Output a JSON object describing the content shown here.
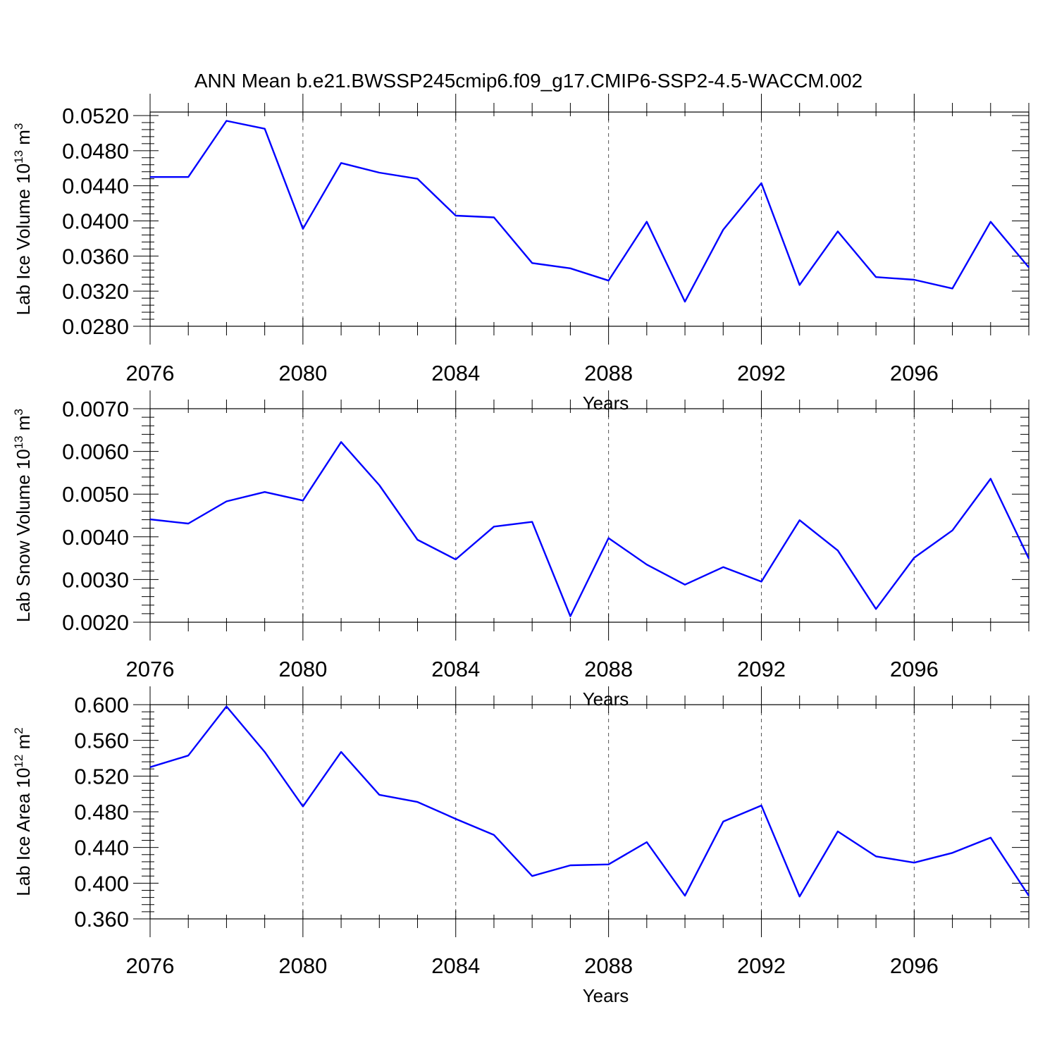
{
  "figure_title": "ANN Mean b.e21.BWSSP245cmip6.f09_g17.CMIP6-SSP2-4.5-WACCM.002",
  "colors": {
    "series": "#0000ff",
    "grid": "#555555",
    "axes": "#000000"
  },
  "chart_data": [
    {
      "type": "line",
      "ylabel": "Lab Ice Volume 10",
      "ylabel_power": "13",
      "ylabel_unit": " m",
      "ylabel_unit_power": "3",
      "xlabel": "Years",
      "xlim": [
        2076,
        2099
      ],
      "ylim": [
        0.028,
        0.0524
      ],
      "xticks": [
        2076,
        2080,
        2084,
        2088,
        2092,
        2096
      ],
      "yticks": [
        0.028,
        0.032,
        0.036,
        0.04,
        0.044,
        0.048,
        0.052
      ],
      "ytick_labels": [
        "0.0280",
        "0.0320",
        "0.0360",
        "0.0400",
        "0.0440",
        "0.0480",
        "0.0520"
      ],
      "grid": "x dashed at major ticks",
      "x": [
        2076,
        2077,
        2078,
        2079,
        2080,
        2081,
        2082,
        2083,
        2084,
        2085,
        2086,
        2087,
        2088,
        2089,
        2090,
        2091,
        2092,
        2093,
        2094,
        2095,
        2096,
        2097,
        2098,
        2099
      ],
      "y": [
        0.045,
        0.045,
        0.0514,
        0.0505,
        0.0391,
        0.0466,
        0.0455,
        0.0448,
        0.0406,
        0.0404,
        0.0352,
        0.0346,
        0.0332,
        0.0399,
        0.0308,
        0.039,
        0.0443,
        0.0327,
        0.0388,
        0.0336,
        0.0333,
        0.0323,
        0.0399,
        0.0347
      ]
    },
    {
      "type": "line",
      "ylabel": "Lab Snow Volume 10",
      "ylabel_power": "13",
      "ylabel_unit": " m",
      "ylabel_unit_power": "3",
      "xlabel": "Years",
      "xlim": [
        2076,
        2099
      ],
      "ylim": [
        0.002,
        0.007
      ],
      "xticks": [
        2076,
        2080,
        2084,
        2088,
        2092,
        2096
      ],
      "yticks": [
        0.002,
        0.003,
        0.004,
        0.005,
        0.006,
        0.007
      ],
      "ytick_labels": [
        "0.0020",
        "0.0030",
        "0.0040",
        "0.0050",
        "0.0060",
        "0.0070"
      ],
      "grid": "x dashed at major ticks",
      "x": [
        2076,
        2077,
        2078,
        2079,
        2080,
        2081,
        2082,
        2083,
        2084,
        2085,
        2086,
        2087,
        2088,
        2089,
        2090,
        2091,
        2092,
        2093,
        2094,
        2095,
        2096,
        2097,
        2098,
        2099
      ],
      "y": [
        0.00441,
        0.00431,
        0.00483,
        0.00505,
        0.00485,
        0.00622,
        0.00521,
        0.00393,
        0.00347,
        0.00424,
        0.00435,
        0.00214,
        0.00397,
        0.00335,
        0.00288,
        0.00329,
        0.00295,
        0.00439,
        0.00368,
        0.00231,
        0.00351,
        0.00415,
        0.00536,
        0.00349
      ]
    },
    {
      "type": "line",
      "ylabel": "Lab Ice Area 10",
      "ylabel_power": "12",
      "ylabel_unit": " m",
      "ylabel_unit_power": "2",
      "xlabel": "Years",
      "xlim": [
        2076,
        2099
      ],
      "ylim": [
        0.36,
        0.6
      ],
      "xticks": [
        2076,
        2080,
        2084,
        2088,
        2092,
        2096
      ],
      "yticks": [
        0.36,
        0.4,
        0.44,
        0.48,
        0.52,
        0.56,
        0.6
      ],
      "ytick_labels": [
        "0.360",
        "0.400",
        "0.440",
        "0.480",
        "0.520",
        "0.560",
        "0.600"
      ],
      "grid": "x dashed at major ticks",
      "x": [
        2076,
        2077,
        2078,
        2079,
        2080,
        2081,
        2082,
        2083,
        2084,
        2085,
        2086,
        2087,
        2088,
        2089,
        2090,
        2091,
        2092,
        2093,
        2094,
        2095,
        2096,
        2097,
        2098,
        2099
      ],
      "y": [
        0.53,
        0.543,
        0.598,
        0.547,
        0.486,
        0.547,
        0.499,
        0.491,
        0.472,
        0.454,
        0.408,
        0.42,
        0.421,
        0.446,
        0.386,
        0.469,
        0.487,
        0.385,
        0.458,
        0.43,
        0.423,
        0.434,
        0.451,
        0.386
      ]
    }
  ]
}
